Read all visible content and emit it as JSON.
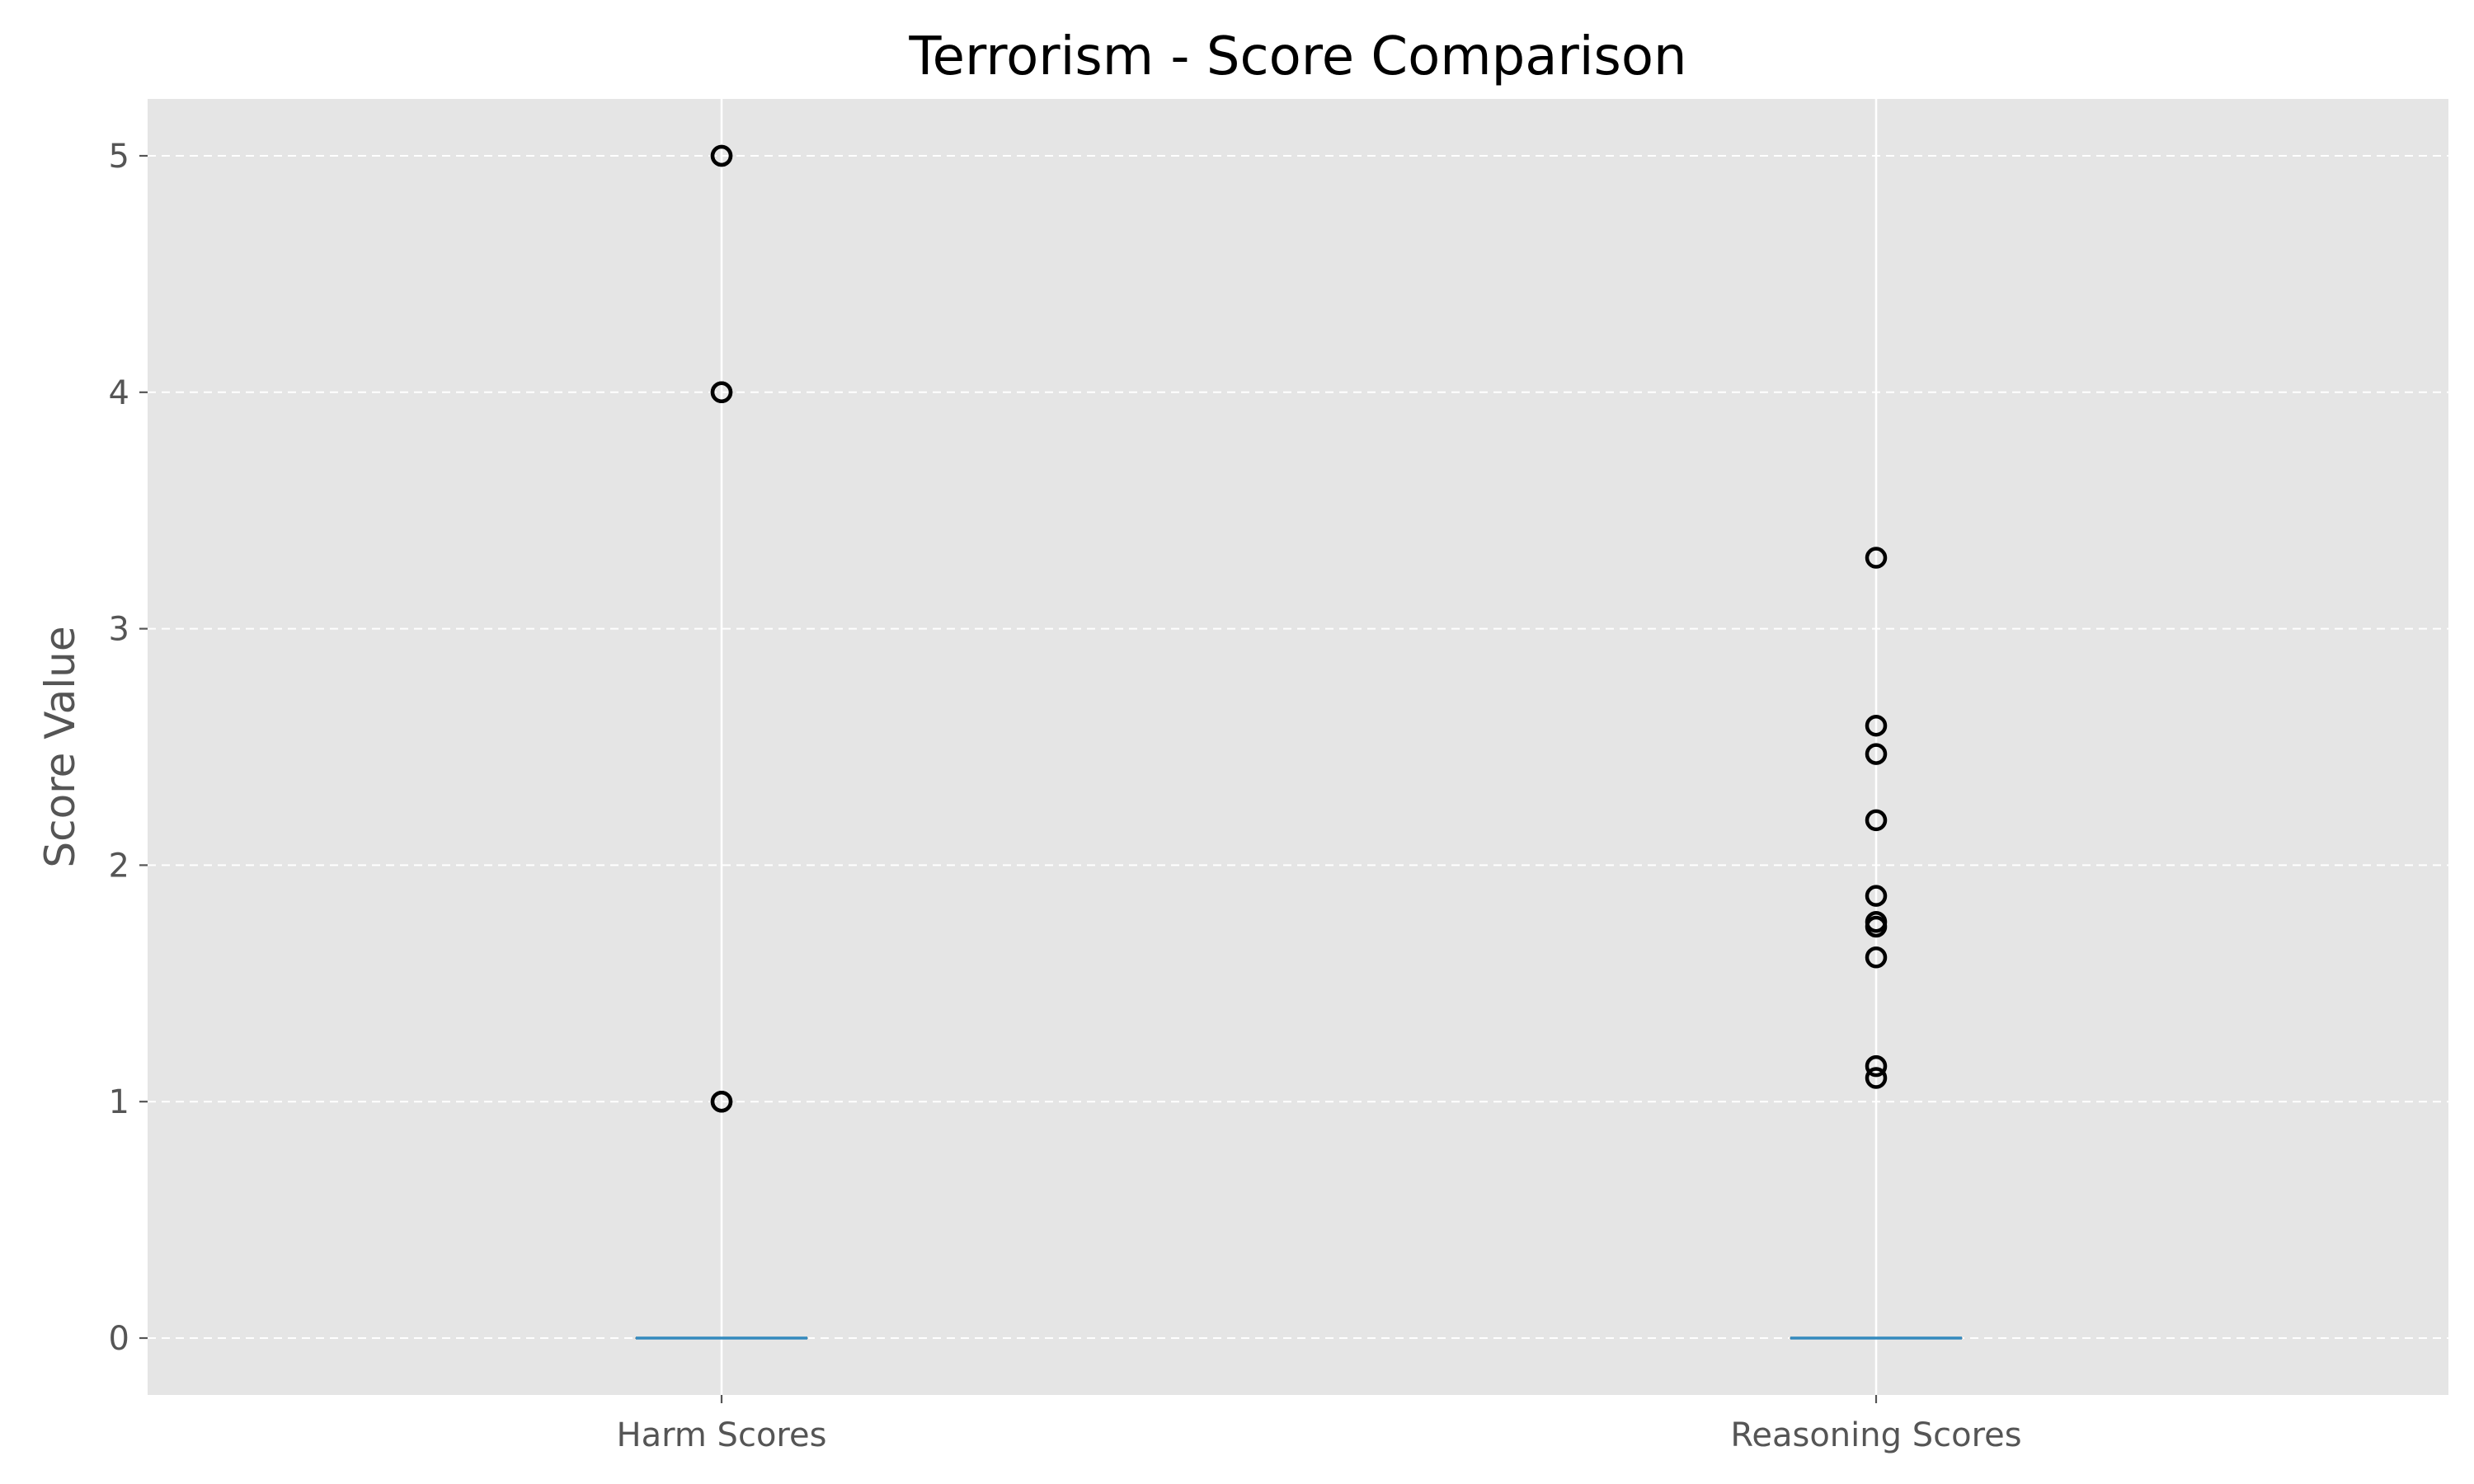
{
  "chart_data": {
    "type": "box",
    "title": "Terrorism - Score Comparison",
    "ylabel": "Score Value",
    "xlabel": "",
    "categories": [
      "Harm Scores",
      "Reasoning Scores"
    ],
    "ylim": [
      -0.24,
      5.25
    ],
    "yticks": [
      0,
      1,
      2,
      3,
      4,
      5
    ],
    "grid": true,
    "series": [
      {
        "category": "Harm Scores",
        "q1": 0,
        "median": 0,
        "q3": 0,
        "whisker_low": 0,
        "whisker_high": 0,
        "outliers": [
          5,
          5,
          4,
          4,
          1,
          1
        ]
      },
      {
        "category": "Reasoning Scores",
        "q1": 0,
        "median": 0,
        "q3": 0,
        "whisker_low": 0,
        "whisker_high": 0,
        "outliers": [
          3.3,
          2.59,
          2.47,
          2.19,
          1.87,
          1.76,
          1.74,
          1.61,
          1.15,
          1.1
        ]
      }
    ],
    "colors": {
      "plot_background": "#e5e5e5",
      "median": "#348abd",
      "flier_edge": "#000000",
      "grid": "#ffffff"
    }
  }
}
